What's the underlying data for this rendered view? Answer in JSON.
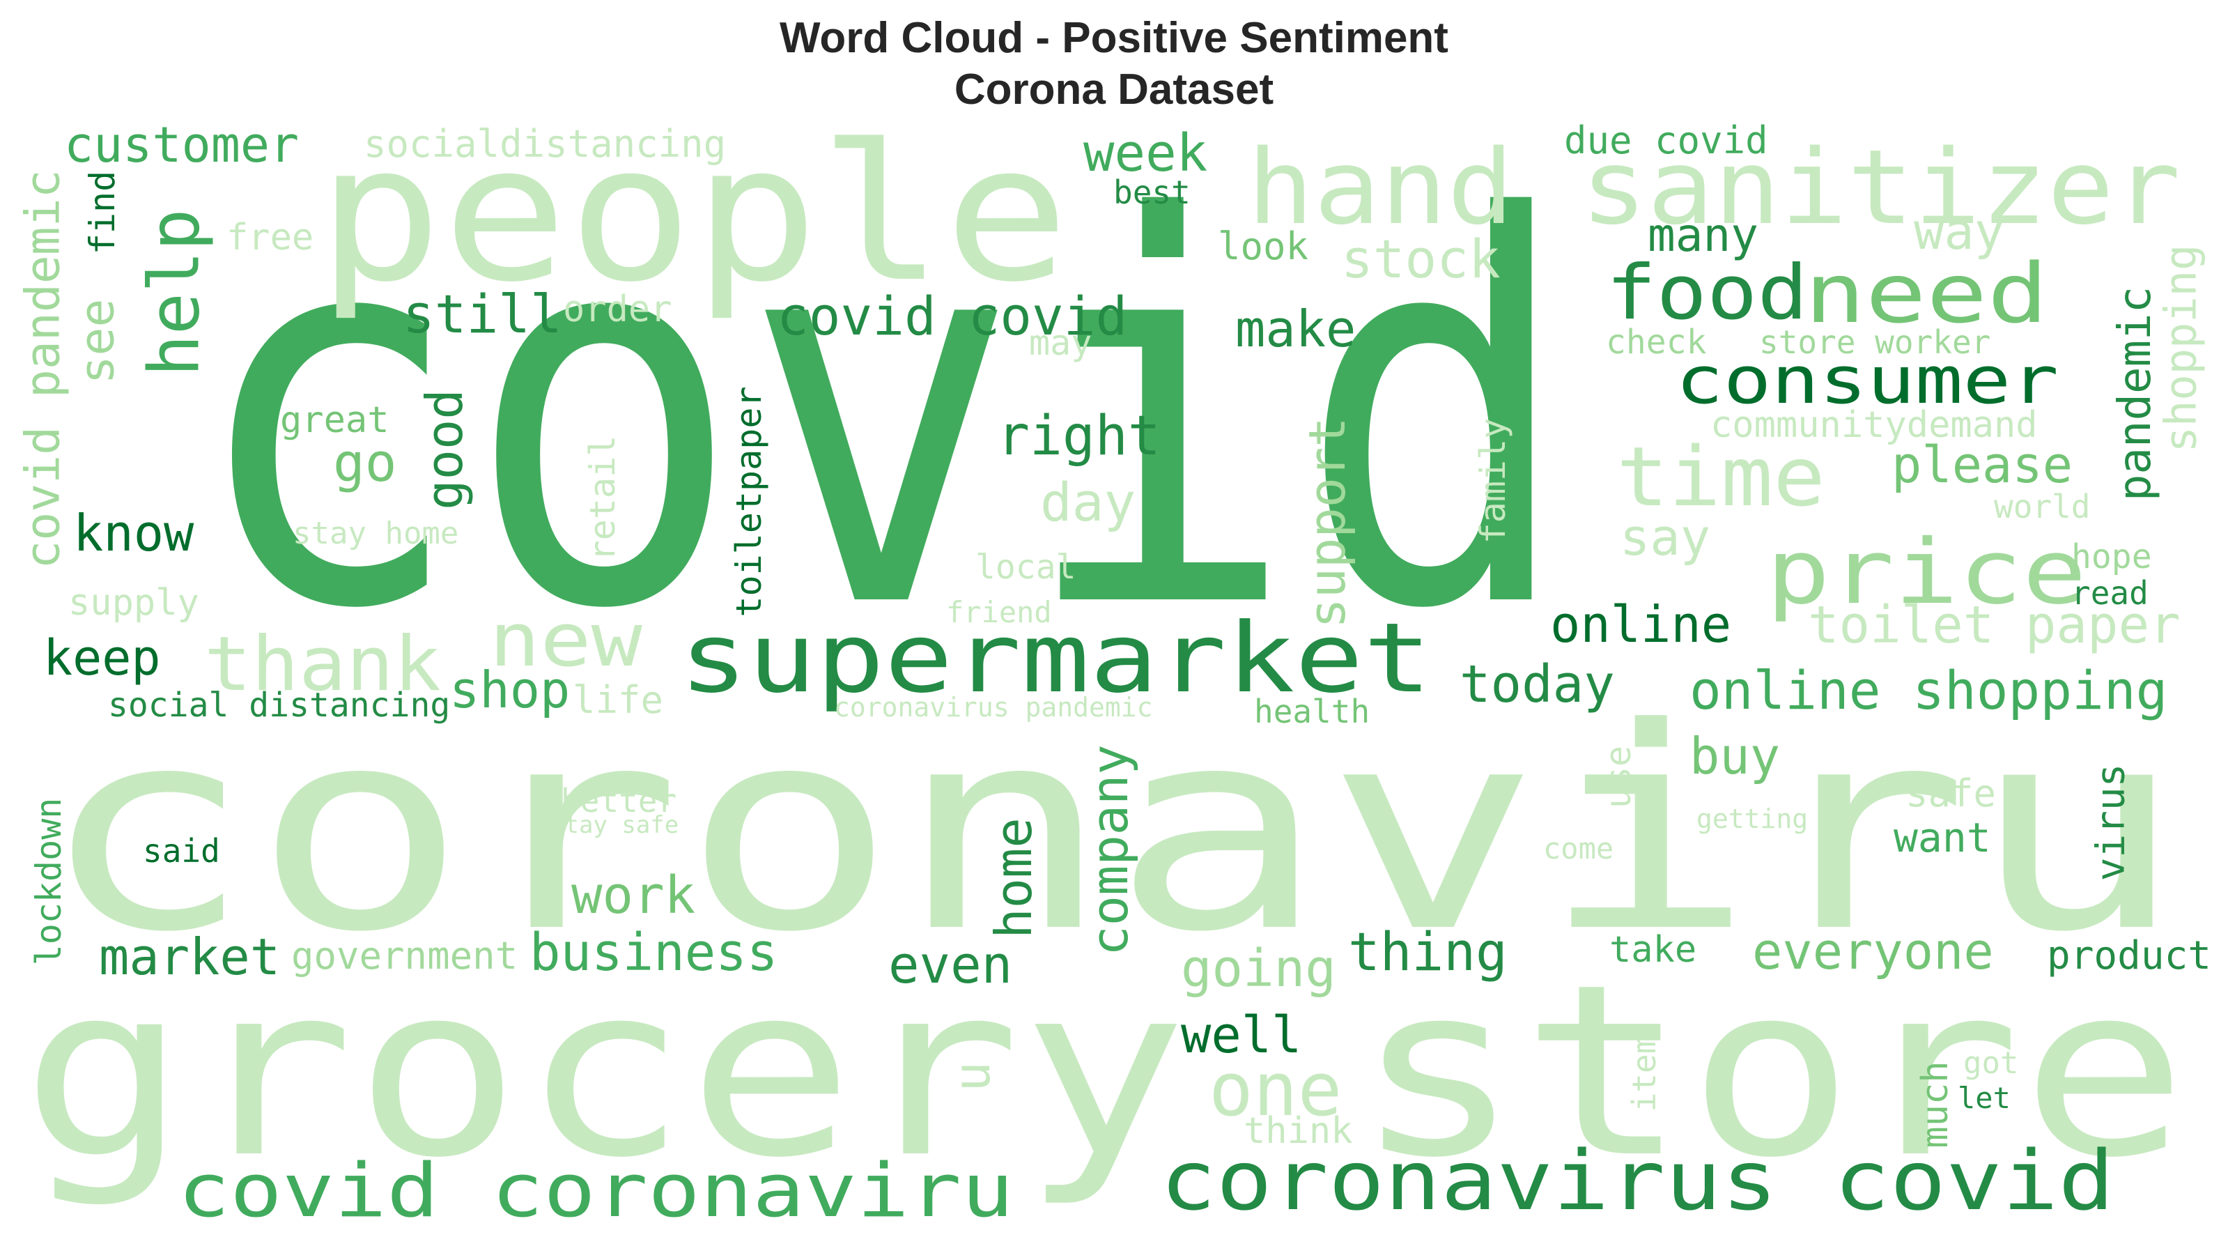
{
  "title": {
    "line1": "Word Cloud - Positive Sentiment",
    "line2": "Corona Dataset"
  },
  "colors": {
    "pale": "#c7e9c0",
    "light": "#a1d99b",
    "medium": "#74c476",
    "strong": "#41ab5d",
    "dark": "#238b45",
    "darkest": "#006d2c"
  },
  "words": [
    {
      "text": "covid",
      "shade": "strong",
      "rotate": false
    },
    {
      "text": "coronaviru",
      "shade": "pale",
      "rotate": false
    },
    {
      "text": "grocery store",
      "shade": "pale",
      "rotate": false
    },
    {
      "text": "people",
      "shade": "pale",
      "rotate": false
    },
    {
      "text": "hand sanitizer",
      "shade": "pale",
      "rotate": false
    },
    {
      "text": "supermarket",
      "shade": "dark",
      "rotate": false
    },
    {
      "text": "coronavirus covid",
      "shade": "dark",
      "rotate": false
    },
    {
      "text": "covid coronaviru",
      "shade": "strong",
      "rotate": false
    },
    {
      "text": "price",
      "shade": "light",
      "rotate": false
    },
    {
      "text": "need",
      "shade": "medium",
      "rotate": false
    },
    {
      "text": "food",
      "shade": "dark",
      "rotate": false
    },
    {
      "text": "consumer",
      "shade": "darkest",
      "rotate": false
    },
    {
      "text": "time",
      "shade": "pale",
      "rotate": false
    },
    {
      "text": "thank",
      "shade": "pale",
      "rotate": false
    },
    {
      "text": "new",
      "shade": "pale",
      "rotate": false
    },
    {
      "text": "help",
      "shade": "strong",
      "rotate": true
    },
    {
      "text": "customer",
      "shade": "strong",
      "rotate": false
    },
    {
      "text": "socialdistancing",
      "shade": "pale",
      "rotate": false
    },
    {
      "text": "covid pandemic",
      "shade": "light",
      "rotate": true
    },
    {
      "text": "see",
      "shade": "light",
      "rotate": true
    },
    {
      "text": "find",
      "shade": "darkest",
      "rotate": true
    },
    {
      "text": "free",
      "shade": "pale",
      "rotate": false
    },
    {
      "text": "covid covid",
      "shade": "dark",
      "rotate": false
    },
    {
      "text": "still",
      "shade": "dark",
      "rotate": false
    },
    {
      "text": "order",
      "shade": "pale",
      "rotate": false
    },
    {
      "text": "week",
      "shade": "strong",
      "rotate": false
    },
    {
      "text": "best",
      "shade": "dark",
      "rotate": false
    },
    {
      "text": "due covid",
      "shade": "strong",
      "rotate": false
    },
    {
      "text": "many",
      "shade": "dark",
      "rotate": false
    },
    {
      "text": "way",
      "shade": "pale",
      "rotate": false
    },
    {
      "text": "stock",
      "shade": "pale",
      "rotate": false
    },
    {
      "text": "look",
      "shade": "medium",
      "rotate": false
    },
    {
      "text": "make",
      "shade": "dark",
      "rotate": false
    },
    {
      "text": "may",
      "shade": "pale",
      "rotate": false
    },
    {
      "text": "check",
      "shade": "light",
      "rotate": false
    },
    {
      "text": "store worker",
      "shade": "light",
      "rotate": false
    },
    {
      "text": "pandemic",
      "shade": "dark",
      "rotate": true
    },
    {
      "text": "shopping",
      "shade": "pale",
      "rotate": true
    },
    {
      "text": "communitydemand",
      "shade": "pale",
      "rotate": false
    },
    {
      "text": "please",
      "shade": "medium",
      "rotate": false
    },
    {
      "text": "world",
      "shade": "pale",
      "rotate": false
    },
    {
      "text": "say",
      "shade": "pale",
      "rotate": false
    },
    {
      "text": "hope",
      "shade": "light",
      "rotate": false
    },
    {
      "text": "read",
      "shade": "dark",
      "rotate": false
    },
    {
      "text": "toilet paper",
      "shade": "pale",
      "rotate": false
    },
    {
      "text": "online",
      "shade": "darkest",
      "rotate": false
    },
    {
      "text": "today",
      "shade": "dark",
      "rotate": false
    },
    {
      "text": "online shopping",
      "shade": "strong",
      "rotate": false
    },
    {
      "text": "great",
      "shade": "medium",
      "rotate": false
    },
    {
      "text": "go",
      "shade": "medium",
      "rotate": false
    },
    {
      "text": "good",
      "shade": "dark",
      "rotate": true
    },
    {
      "text": "right",
      "shade": "dark",
      "rotate": false
    },
    {
      "text": "day",
      "shade": "pale",
      "rotate": false
    },
    {
      "text": "support",
      "shade": "light",
      "rotate": true
    },
    {
      "text": "family",
      "shade": "pale",
      "rotate": true
    },
    {
      "text": "toiletpaper",
      "shade": "darkest",
      "rotate": true
    },
    {
      "text": "retail",
      "shade": "pale",
      "rotate": true
    },
    {
      "text": "know",
      "shade": "darkest",
      "rotate": false
    },
    {
      "text": "stay home",
      "shade": "pale",
      "rotate": false
    },
    {
      "text": "local",
      "shade": "pale",
      "rotate": false
    },
    {
      "text": "supply",
      "shade": "pale",
      "rotate": false
    },
    {
      "text": "friend",
      "shade": "pale",
      "rotate": false
    },
    {
      "text": "keep",
      "shade": "darkest",
      "rotate": false
    },
    {
      "text": "shop",
      "shade": "strong",
      "rotate": false
    },
    {
      "text": "life",
      "shade": "pale",
      "rotate": false
    },
    {
      "text": "social distancing",
      "shade": "dark",
      "rotate": false
    },
    {
      "text": "coronavirus pandemic",
      "shade": "pale",
      "rotate": false
    },
    {
      "text": "health",
      "shade": "medium",
      "rotate": false
    },
    {
      "text": "buy",
      "shade": "medium",
      "rotate": false
    },
    {
      "text": "use",
      "shade": "pale",
      "rotate": true
    },
    {
      "text": "safe",
      "shade": "pale",
      "rotate": false
    },
    {
      "text": "virus",
      "shade": "dark",
      "rotate": true
    },
    {
      "text": "better",
      "shade": "pale",
      "rotate": false
    },
    {
      "text": "stay safe",
      "shade": "pale",
      "rotate": false
    },
    {
      "text": "getting",
      "shade": "pale",
      "rotate": false
    },
    {
      "text": "come",
      "shade": "pale",
      "rotate": false
    },
    {
      "text": "want",
      "shade": "strong",
      "rotate": false
    },
    {
      "text": "said",
      "shade": "darkest",
      "rotate": false
    },
    {
      "text": "lockdown",
      "shade": "strong",
      "rotate": true
    },
    {
      "text": "work",
      "shade": "medium",
      "rotate": false
    },
    {
      "text": "home",
      "shade": "dark",
      "rotate": true
    },
    {
      "text": "company",
      "shade": "strong",
      "rotate": true
    },
    {
      "text": "market",
      "shade": "dark",
      "rotate": false
    },
    {
      "text": "government",
      "shade": "light",
      "rotate": false
    },
    {
      "text": "business",
      "shade": "strong",
      "rotate": false
    },
    {
      "text": "even",
      "shade": "dark",
      "rotate": false
    },
    {
      "text": "going",
      "shade": "light",
      "rotate": false
    },
    {
      "text": "thing",
      "shade": "dark",
      "rotate": false
    },
    {
      "text": "take",
      "shade": "strong",
      "rotate": false
    },
    {
      "text": "everyone",
      "shade": "medium",
      "rotate": false
    },
    {
      "text": "product",
      "shade": "dark",
      "rotate": false
    },
    {
      "text": "well",
      "shade": "darkest",
      "rotate": false
    },
    {
      "text": "one",
      "shade": "pale",
      "rotate": false
    },
    {
      "text": "u",
      "shade": "pale",
      "rotate": true
    },
    {
      "text": "think",
      "shade": "pale",
      "rotate": false
    },
    {
      "text": "item",
      "shade": "pale",
      "rotate": true
    },
    {
      "text": "much",
      "shade": "medium",
      "rotate": true
    },
    {
      "text": "got",
      "shade": "pale",
      "rotate": false
    },
    {
      "text": "let",
      "shade": "dark",
      "rotate": false
    }
  ]
}
